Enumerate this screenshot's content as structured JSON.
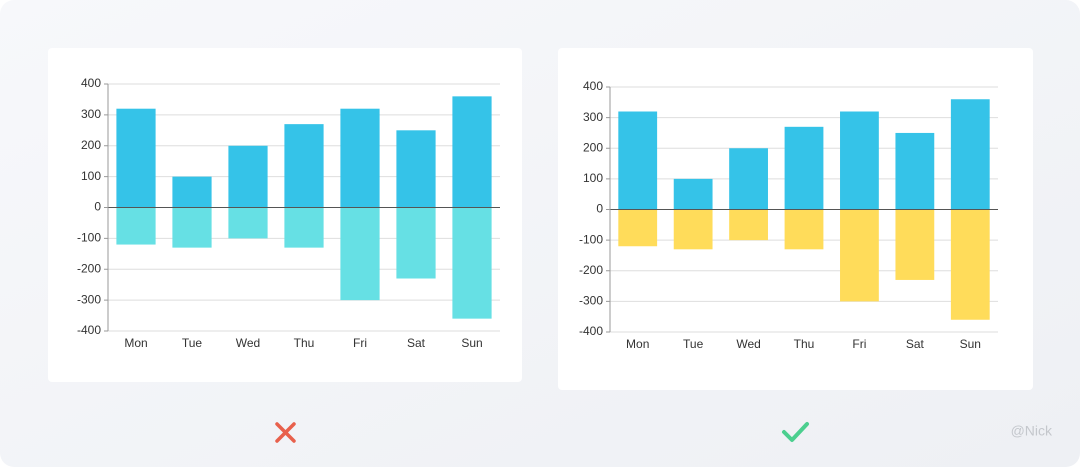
{
  "credit": "@Nick",
  "chart_data": [
    {
      "type": "bar",
      "categories": [
        "Mon",
        "Tue",
        "Wed",
        "Thu",
        "Fri",
        "Sat",
        "Sun"
      ],
      "series": [
        {
          "color": "#35c3e8",
          "values": [
            320,
            100,
            200,
            270,
            320,
            250,
            360
          ]
        },
        {
          "color": "#66e0e4",
          "values": [
            -120,
            -130,
            -100,
            -130,
            -300,
            -230,
            -360
          ]
        }
      ],
      "ylim": [
        -400,
        400
      ],
      "yticks": [
        -400,
        -300,
        -200,
        -100,
        0,
        100,
        200,
        300,
        400
      ],
      "grid": true
    },
    {
      "type": "bar",
      "categories": [
        "Mon",
        "Tue",
        "Wed",
        "Thu",
        "Fri",
        "Sat",
        "Sun"
      ],
      "series": [
        {
          "color": "#35c3e8",
          "values": [
            320,
            100,
            200,
            270,
            320,
            250,
            360
          ]
        },
        {
          "color": "#ffdc5a",
          "values": [
            -120,
            -130,
            -100,
            -130,
            -300,
            -230,
            -360
          ]
        }
      ],
      "ylim": [
        -400,
        400
      ],
      "yticks": [
        -400,
        -300,
        -200,
        -100,
        0,
        100,
        200,
        300,
        400
      ],
      "grid": true
    }
  ]
}
